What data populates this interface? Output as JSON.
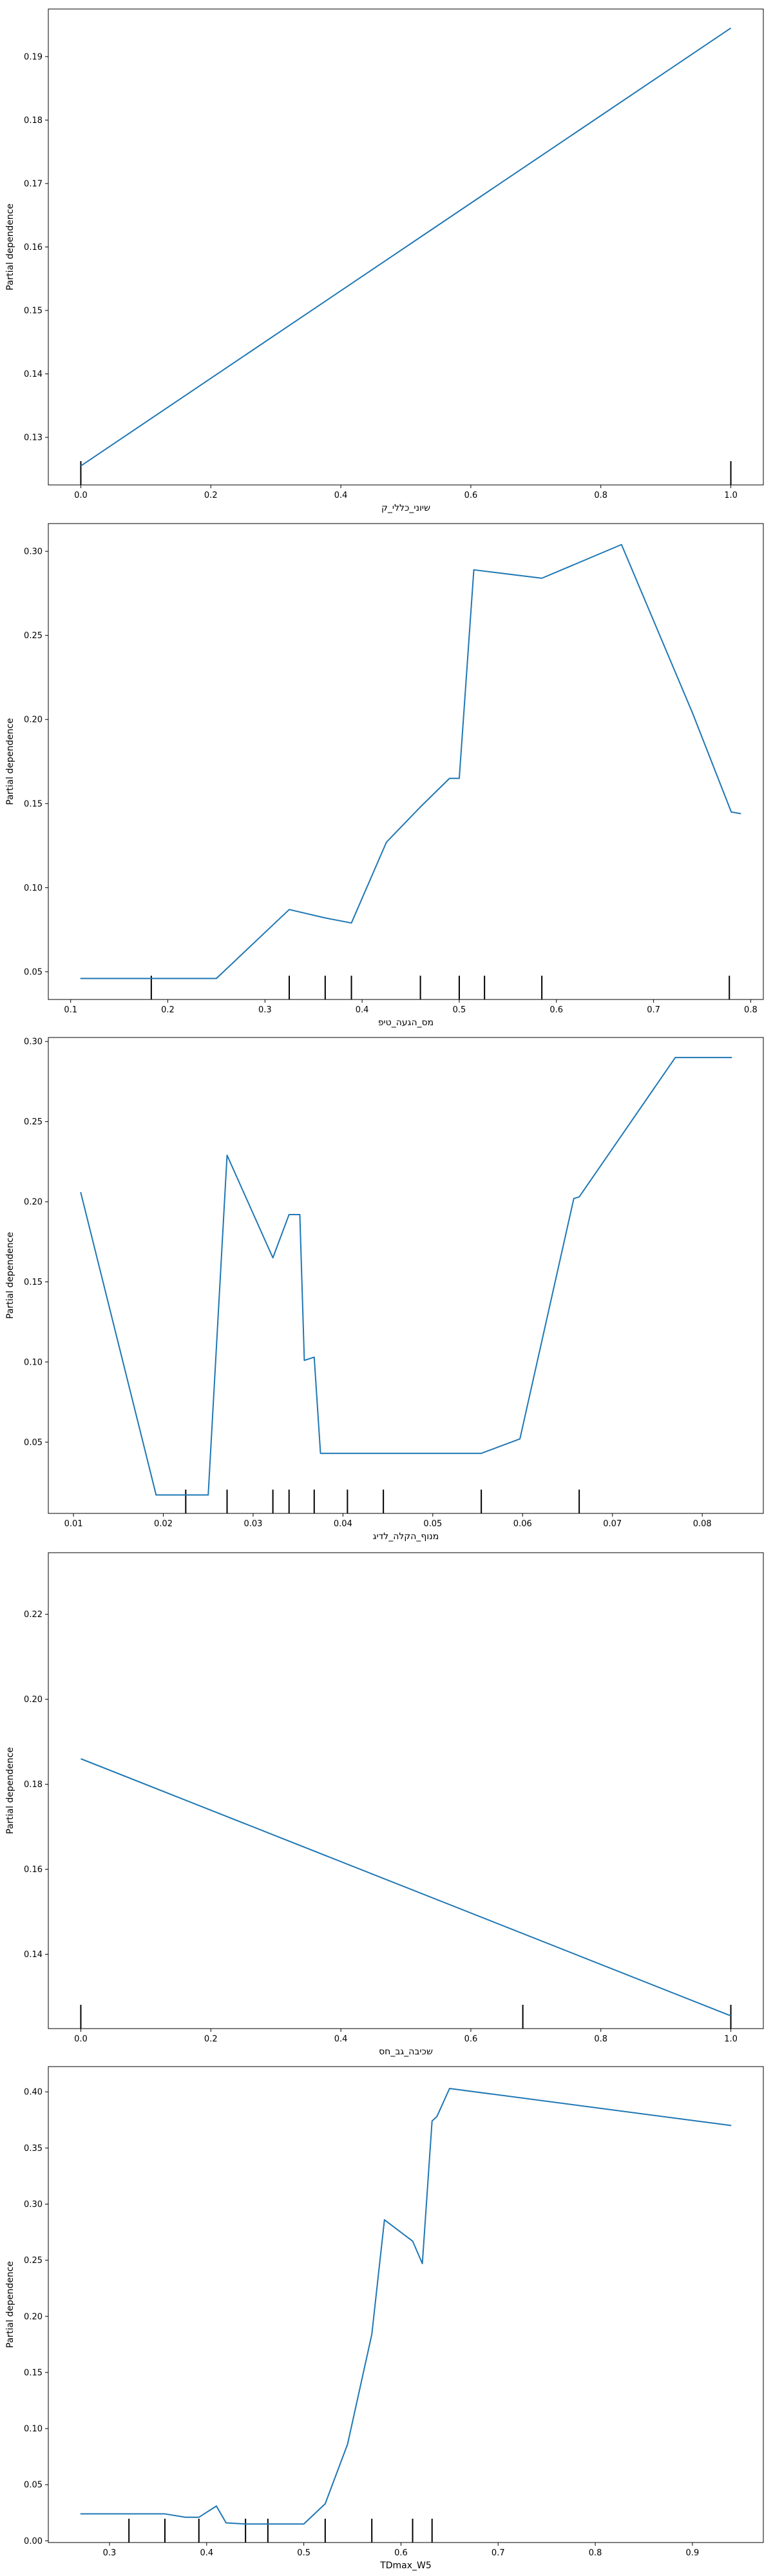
{
  "chart_data": [
    {
      "type": "line",
      "xlabel": "שיוני_כללי_ק",
      "ylabel": "Partial dependence",
      "xlim": [
        -0.05,
        1.05
      ],
      "ylim": [
        0.1225,
        0.1975
      ],
      "xticks": [
        0.0,
        0.2,
        0.4,
        0.6,
        0.8,
        1.0
      ],
      "xtick_labels": [
        "0.0",
        "0.2",
        "0.4",
        "0.6",
        "0.8",
        "1.0"
      ],
      "yticks": [
        0.13,
        0.14,
        0.15,
        0.16,
        0.17,
        0.18,
        0.19
      ],
      "ytick_labels": [
        "0.13",
        "0.14",
        "0.15",
        "0.16",
        "0.17",
        "0.18",
        "0.19"
      ],
      "series": [
        {
          "x": [
            0.0,
            1.0
          ],
          "y": [
            0.1255,
            0.1945
          ]
        }
      ],
      "rug": [
        0.0,
        1.0
      ],
      "color": "#1f77b4",
      "grid": false
    },
    {
      "type": "line",
      "xlabel": "מס_הגעה_טיפ",
      "ylabel": "Partial dependence",
      "xlim": [
        0.077,
        0.813
      ],
      "ylim": [
        0.0335,
        0.3165
      ],
      "xticks": [
        0.1,
        0.2,
        0.3,
        0.4,
        0.5,
        0.6,
        0.7,
        0.8
      ],
      "xtick_labels": [
        "0.1",
        "0.2",
        "0.3",
        "0.4",
        "0.5",
        "0.6",
        "0.7",
        "0.8"
      ],
      "yticks": [
        0.05,
        0.1,
        0.15,
        0.2,
        0.25,
        0.3
      ],
      "ytick_labels": [
        "0.05",
        "0.10",
        "0.15",
        "0.20",
        "0.25",
        "0.30"
      ],
      "series": [
        {
          "x": [
            0.11,
            0.183,
            0.25,
            0.325,
            0.362,
            0.389,
            0.425,
            0.46,
            0.49,
            0.5,
            0.515,
            0.585,
            0.667,
            0.74,
            0.78,
            0.79
          ],
          "y": [
            0.046,
            0.046,
            0.046,
            0.087,
            0.082,
            0.079,
            0.127,
            0.148,
            0.165,
            0.165,
            0.289,
            0.284,
            0.304,
            0.204,
            0.145,
            0.144
          ]
        }
      ],
      "rug": [
        0.183,
        0.325,
        0.362,
        0.389,
        0.46,
        0.5,
        0.526,
        0.585,
        0.778
      ],
      "color": "#1f77b4",
      "grid": false
    },
    {
      "type": "line",
      "xlabel": "מנוף_הקלה_לדיג",
      "ylabel": "Partial dependence",
      "xlim": [
        0.0072,
        0.0868
      ],
      "ylim": [
        0.0055,
        0.3025
      ],
      "xticks": [
        0.01,
        0.02,
        0.03,
        0.04,
        0.05,
        0.06,
        0.07,
        0.08
      ],
      "xtick_labels": [
        "0.01",
        "0.02",
        "0.03",
        "0.04",
        "0.05",
        "0.06",
        "0.07",
        "0.08"
      ],
      "yticks": [
        0.05,
        0.1,
        0.15,
        0.2,
        0.25,
        0.3
      ],
      "ytick_labels": [
        "0.05",
        "0.10",
        "0.15",
        "0.20",
        "0.25",
        "0.30"
      ],
      "series": [
        {
          "x": [
            0.0108,
            0.0192,
            0.0225,
            0.025,
            0.0271,
            0.0322,
            0.034,
            0.0352,
            0.0357,
            0.0368,
            0.0375,
            0.0405,
            0.0445,
            0.0554,
            0.0597,
            0.0657,
            0.0663,
            0.077,
            0.0833
          ],
          "y": [
            0.206,
            0.017,
            0.017,
            0.017,
            0.229,
            0.165,
            0.192,
            0.192,
            0.101,
            0.103,
            0.043,
            0.043,
            0.043,
            0.043,
            0.052,
            0.202,
            0.203,
            0.29,
            0.29
          ]
        }
      ],
      "rug": [
        0.0225,
        0.0271,
        0.0322,
        0.034,
        0.0368,
        0.0405,
        0.0445,
        0.0554,
        0.0663
      ],
      "color": "#1f77b4",
      "grid": false
    },
    {
      "type": "line",
      "xlabel": "שכיבה_גב_חס",
      "ylabel": "Partial dependence",
      "xlim": [
        -0.05,
        1.05
      ],
      "ylim": [
        0.1225,
        0.2345
      ],
      "xticks": [
        0.0,
        0.2,
        0.4,
        0.6,
        0.8,
        1.0
      ],
      "xtick_labels": [
        "0.0",
        "0.2",
        "0.4",
        "0.6",
        "0.8",
        "1.0"
      ],
      "yticks": [
        0.14,
        0.16,
        0.18,
        0.2,
        0.22
      ],
      "ytick_labels": [
        "0.14",
        "0.16",
        "0.18",
        "0.20",
        "0.22"
      ],
      "series": [
        {
          "x": [
            0.0,
            1.0
          ],
          "y": [
            0.186,
            0.1255
          ]
        }
      ],
      "rug": [
        0.0,
        0.68,
        1.0
      ],
      "color": "#1f77b4",
      "grid": false
    },
    {
      "type": "line",
      "xlabel": "TDmax_W5",
      "ylabel": "Partial dependence",
      "xlim": [
        0.237,
        0.973
      ],
      "ylim": [
        -0.0015,
        0.4225
      ],
      "xticks": [
        0.3,
        0.4,
        0.5,
        0.6,
        0.7,
        0.8,
        0.9
      ],
      "xtick_labels": [
        "0.3",
        "0.4",
        "0.5",
        "0.6",
        "0.7",
        "0.8",
        "0.9"
      ],
      "yticks": [
        0.0,
        0.05,
        0.1,
        0.15,
        0.2,
        0.25,
        0.3,
        0.35,
        0.4
      ],
      "ytick_labels": [
        "0.00",
        "0.05",
        "0.10",
        "0.15",
        "0.20",
        "0.25",
        "0.30",
        "0.35",
        "0.40"
      ],
      "series": [
        {
          "x": [
            0.27,
            0.32,
            0.357,
            0.378,
            0.392,
            0.41,
            0.42,
            0.44,
            0.463,
            0.5,
            0.522,
            0.545,
            0.57,
            0.583,
            0.612,
            0.622,
            0.632,
            0.637,
            0.65,
            0.94
          ],
          "y": [
            0.024,
            0.024,
            0.024,
            0.021,
            0.021,
            0.031,
            0.016,
            0.015,
            0.015,
            0.015,
            0.033,
            0.086,
            0.184,
            0.286,
            0.267,
            0.247,
            0.374,
            0.378,
            0.403,
            0.37
          ]
        }
      ],
      "rug": [
        0.32,
        0.357,
        0.392,
        0.44,
        0.463,
        0.522,
        0.57,
        0.612,
        0.632
      ],
      "color": "#1f77b4",
      "grid": false
    }
  ]
}
